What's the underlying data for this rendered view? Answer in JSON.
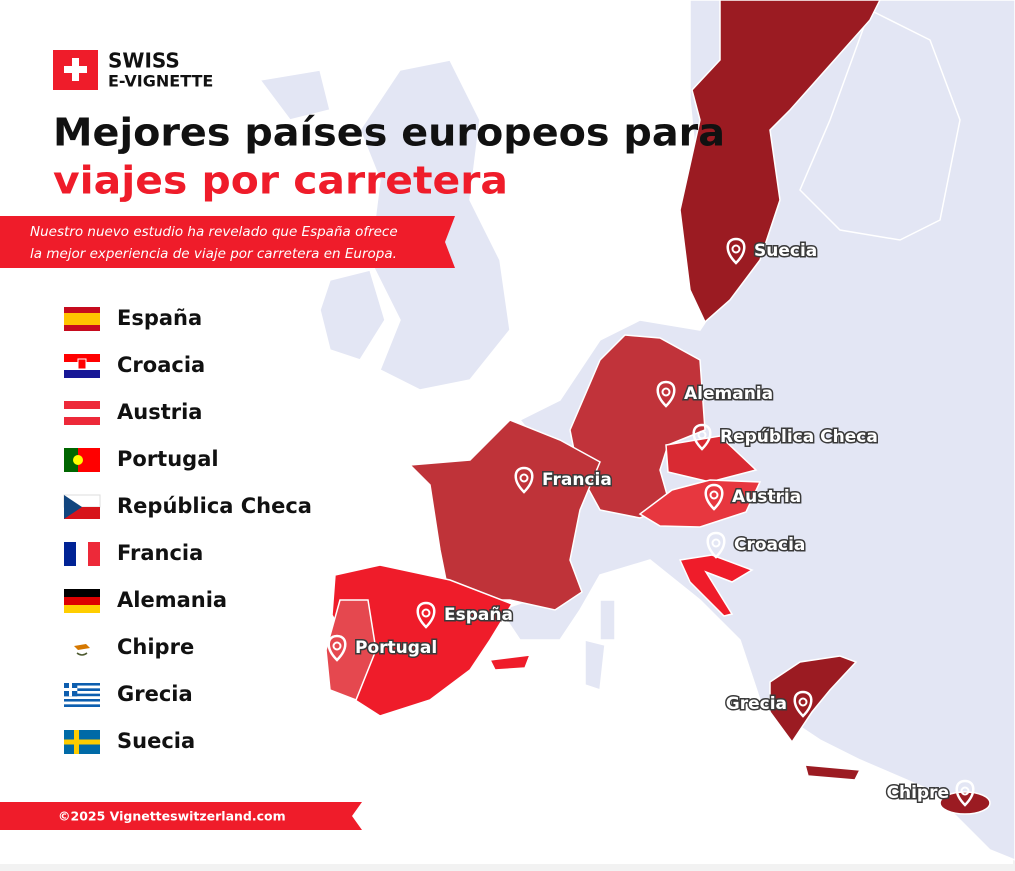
{
  "logo": {
    "line1": "SWISS",
    "line2": "E-VIGNETTE"
  },
  "title": {
    "line1": "Mejores países europeos para",
    "line2": "viajes por carretera"
  },
  "subtitle": {
    "line1": "Nuestro nuevo estudio ha revelado que España ofrece",
    "line2": "la mejor experiencia de viaje por carretera en Europa."
  },
  "ranking": [
    "España",
    "Croacia",
    "Austria",
    "Portugal",
    "República Checa",
    "Francia",
    "Alemania",
    "Chipre",
    "Grecia",
    "Suecia"
  ],
  "map_labels": [
    "Suecia",
    "Alemania",
    "República Checa",
    "Francia",
    "Austria",
    "Croacia",
    "España",
    "Portugal",
    "Grecia",
    "Chipre"
  ],
  "footer": "©2025 Vignetteswitzerland.com"
}
